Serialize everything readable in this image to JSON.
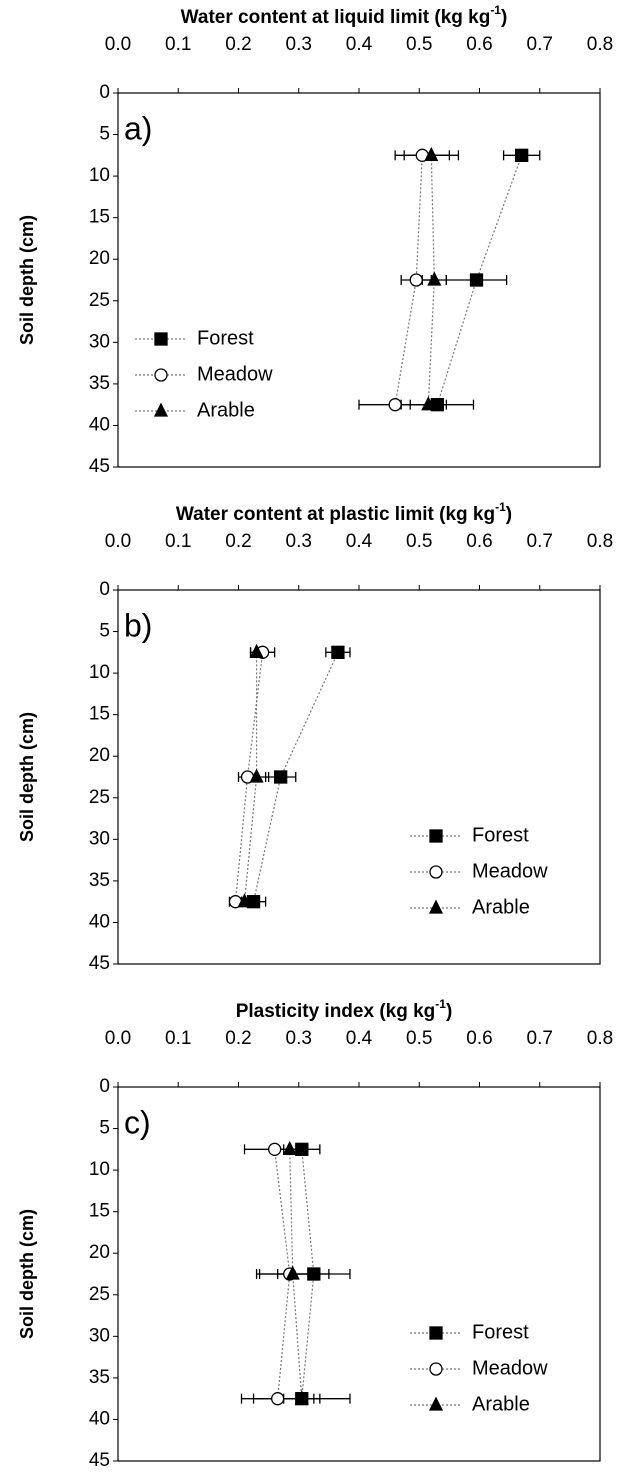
{
  "chart_data": [
    {
      "type": "line",
      "title": [
        "Water content at liquid limit (kg kg",
        "-1",
        ")"
      ],
      "ylabel": "Soil depth (cm)",
      "panel_label": "a)",
      "xlim": [
        0,
        0.8
      ],
      "xticks": [
        {
          "value": 0,
          "label": "0.0"
        },
        0.1,
        0.2,
        0.3,
        0.4,
        0.5,
        0.6,
        0.7,
        0.8
      ],
      "ylim": [
        0,
        45
      ],
      "y_inverted": true,
      "yticks": [
        0,
        5,
        10,
        15,
        20,
        25,
        30,
        35,
        40,
        45
      ],
      "y": [
        7.5,
        22.5,
        37.5
      ],
      "legend": "lower left",
      "series": [
        {
          "name": "Forest",
          "color": "#000000",
          "marker": "square",
          "values": [
            0.67,
            0.595,
            0.53
          ],
          "errors": [
            0.03,
            0.05,
            0.06
          ]
        },
        {
          "name": "Meadow",
          "color": "#000000",
          "marker": "circle",
          "values": [
            0.505,
            0.495,
            0.46
          ],
          "errors": [
            0.045,
            0.025,
            0.06
          ]
        },
        {
          "name": "Arable",
          "color": "#000000",
          "marker": "triangle",
          "values": [
            0.52,
            0.525,
            0.515
          ],
          "errors": [
            0.045,
            0.02,
            0.03
          ]
        }
      ]
    },
    {
      "type": "line",
      "title": [
        "Water content at plastic limit (kg kg",
        "-1",
        ")"
      ],
      "ylabel": "Soil depth (cm)",
      "panel_label": "b)",
      "xlim": [
        0,
        0.8
      ],
      "xticks": [
        {
          "value": 0,
          "label": "0.0"
        },
        0.1,
        0.2,
        0.3,
        0.4,
        0.5,
        0.6,
        0.7,
        0.8
      ],
      "ylim": [
        0,
        45
      ],
      "y_inverted": true,
      "yticks": [
        0,
        5,
        10,
        15,
        20,
        25,
        30,
        35,
        40,
        45
      ],
      "y": [
        7.5,
        22.5,
        37.5
      ],
      "legend": "lower right",
      "series": [
        {
          "name": "Forest",
          "color": "#000000",
          "marker": "square",
          "values": [
            0.365,
            0.27,
            0.225
          ],
          "errors": [
            0.02,
            0.025,
            0.02
          ]
        },
        {
          "name": "Meadow",
          "color": "#000000",
          "marker": "circle",
          "values": [
            0.24,
            0.215,
            0.195
          ],
          "errors": [
            0.02,
            0.015,
            0.01
          ]
        },
        {
          "name": "Arable",
          "color": "#000000",
          "marker": "triangle",
          "values": [
            0.23,
            0.23,
            0.21
          ],
          "errors": [
            0.01,
            0.02,
            0.015
          ]
        }
      ]
    },
    {
      "type": "line",
      "title": [
        "Plasticity index (kg kg",
        "-1",
        ")"
      ],
      "ylabel": "Soil depth (cm)",
      "panel_label": "c)",
      "xlim": [
        0,
        0.8
      ],
      "xticks": [
        {
          "value": 0,
          "label": "0.0"
        },
        0.1,
        0.2,
        0.3,
        0.4,
        0.5,
        0.6,
        0.7,
        0.8
      ],
      "ylim": [
        0,
        45
      ],
      "y_inverted": true,
      "yticks": [
        0,
        5,
        10,
        15,
        20,
        25,
        30,
        35,
        40,
        45
      ],
      "y": [
        7.5,
        22.5,
        37.5
      ],
      "legend": "lower right",
      "series": [
        {
          "name": "Forest",
          "color": "#000000",
          "marker": "square",
          "values": [
            0.305,
            0.325,
            0.305
          ],
          "errors": [
            0.03,
            0.06,
            0.08
          ]
        },
        {
          "name": "Meadow",
          "color": "#000000",
          "marker": "circle",
          "values": [
            0.26,
            0.285,
            0.265
          ],
          "errors": [
            0.05,
            0.05,
            0.06
          ]
        },
        {
          "name": "Arable",
          "color": "#000000",
          "marker": "triangle",
          "values": [
            0.285,
            0.29,
            0.305
          ],
          "errors": [
            0.03,
            0.06,
            0.03
          ]
        }
      ]
    }
  ]
}
